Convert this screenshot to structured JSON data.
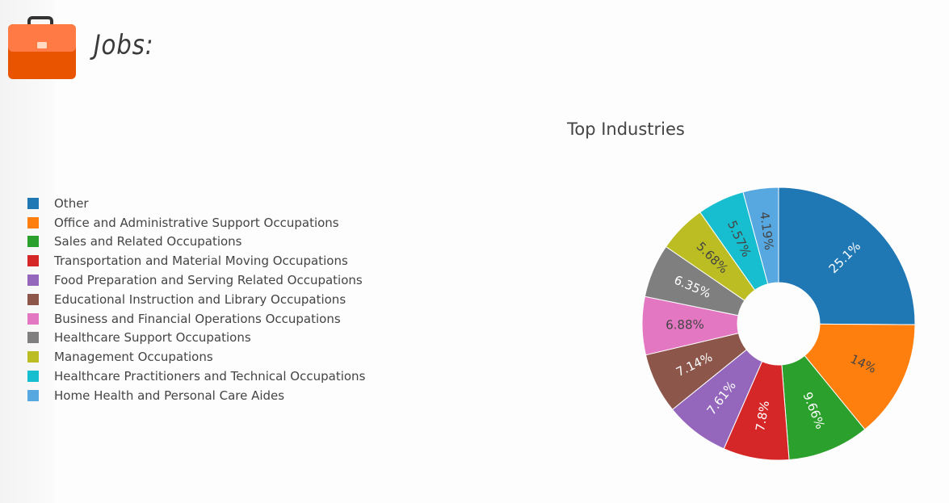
{
  "header": {
    "title": "Jobs:"
  },
  "colors": {
    "briefcase_top": "#ff7a45",
    "briefcase_bottom": "#e85400"
  },
  "chart_data": {
    "type": "pie",
    "hole": true,
    "title": "Top Industries",
    "legend_position": "left",
    "slices": [
      {
        "label": "Other",
        "value": 25.1,
        "text": "25.1%",
        "color": "#1f77b4",
        "text_color": "#ffffff"
      },
      {
        "label": "Office and Administrative Support Occupations",
        "value": 14.0,
        "text": "14%",
        "color": "#ff7f0e",
        "text_color": "#444444"
      },
      {
        "label": "Sales and Related Occupations",
        "value": 9.66,
        "text": "9.66%",
        "color": "#2ca02c",
        "text_color": "#ffffff"
      },
      {
        "label": "Transportation and Material Moving Occupations",
        "value": 7.8,
        "text": "7.8%",
        "color": "#d62728",
        "text_color": "#ffffff"
      },
      {
        "label": "Food Preparation and Serving Related Occupations",
        "value": 7.61,
        "text": "7.61%",
        "color": "#9467bd",
        "text_color": "#ffffff"
      },
      {
        "label": "Educational Instruction and Library Occupations",
        "value": 7.14,
        "text": "7.14%",
        "color": "#8c564b",
        "text_color": "#ffffff"
      },
      {
        "label": "Business and Financial Operations Occupations",
        "value": 6.88,
        "text": "6.88%",
        "color": "#e377c2",
        "text_color": "#444444"
      },
      {
        "label": "Healthcare Support Occupations",
        "value": 6.35,
        "text": "6.35%",
        "color": "#7f7f7f",
        "text_color": "#ffffff"
      },
      {
        "label": "Management Occupations",
        "value": 5.68,
        "text": "5.68%",
        "color": "#bcbd22",
        "text_color": "#444444"
      },
      {
        "label": "Healthcare Practitioners and Technical Occupations",
        "value": 5.57,
        "text": "5.57%",
        "color": "#17becf",
        "text_color": "#444444"
      },
      {
        "label": "Home Health and Personal Care Aides",
        "value": 4.19,
        "text": "4.19%",
        "color": "#57a8e0",
        "text_color": "#444444"
      }
    ]
  }
}
